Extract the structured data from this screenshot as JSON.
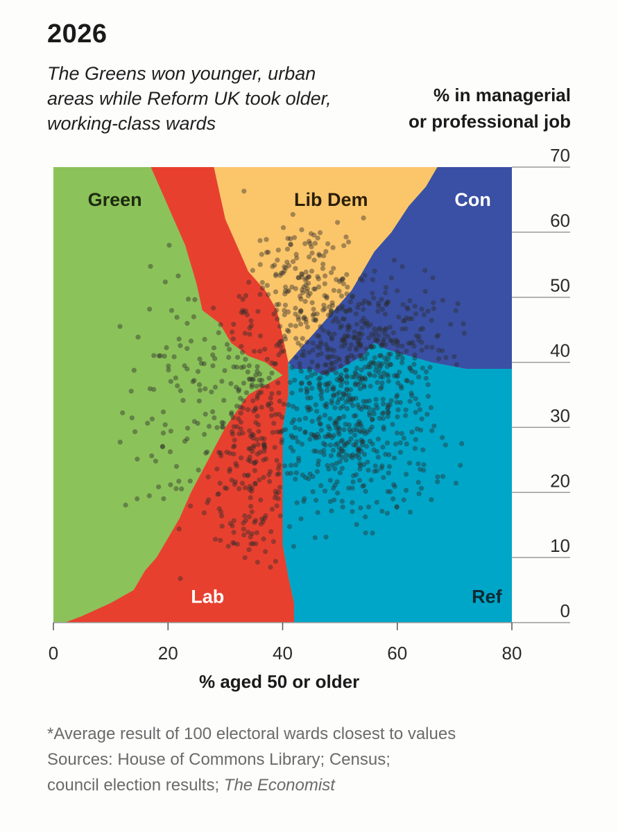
{
  "title": "2026",
  "subtitle": "The Greens won younger, urban areas while Reform UK took older, working-class wards",
  "ylabel_line1": "% in managerial",
  "ylabel_line2": "or professional job",
  "xlabel": "% aged 50 or older",
  "footnote": "*Average result of 100 electoral wards closest to values",
  "sources_line1": "Sources: House of Commons Library; Census;",
  "sources_line2_prefix": "council election results; ",
  "sources_line2_italic": "The Economist",
  "colors": {
    "Green": "#8cc25a",
    "Lab": "#e8402f",
    "LibDem": "#fbc56a",
    "Con": "#3a50a4",
    "Ref": "#00a6c8",
    "dot": "#2a2a2a"
  },
  "chart_data": {
    "type": "scatter",
    "xlim": [
      0,
      80
    ],
    "ylim": [
      0,
      70
    ],
    "x_ticks": [
      0,
      20,
      40,
      60,
      80
    ],
    "y_ticks": [
      0,
      10,
      20,
      30,
      40,
      50,
      60,
      70
    ],
    "grid": "horizontal",
    "regions": [
      {
        "name": "Green",
        "label": "Green",
        "label_pos": [
          6,
          65
        ],
        "label_color": "#1e2a10",
        "polygon": [
          [
            0,
            70
          ],
          [
            17,
            70
          ],
          [
            19,
            66
          ],
          [
            21,
            62
          ],
          [
            23,
            58
          ],
          [
            25,
            52
          ],
          [
            26,
            48
          ],
          [
            29,
            46
          ],
          [
            31,
            43
          ],
          [
            34,
            41
          ],
          [
            37,
            40
          ],
          [
            40,
            38
          ],
          [
            38,
            37
          ],
          [
            34,
            35
          ],
          [
            30,
            30
          ],
          [
            27,
            25
          ],
          [
            24,
            20
          ],
          [
            22,
            16
          ],
          [
            20,
            13
          ],
          [
            18,
            10
          ],
          [
            16,
            8
          ],
          [
            14,
            5
          ],
          [
            10,
            3
          ],
          [
            5,
            1
          ],
          [
            2,
            0
          ],
          [
            0,
            0
          ]
        ]
      },
      {
        "name": "Lab",
        "label": "Lab",
        "label_pos": [
          24,
          4
        ],
        "label_color": "#ffffff",
        "polygon": [
          [
            17,
            70
          ],
          [
            28,
            70
          ],
          [
            29,
            66
          ],
          [
            30,
            62
          ],
          [
            32,
            58
          ],
          [
            34,
            54
          ],
          [
            37,
            51
          ],
          [
            39,
            48
          ],
          [
            40,
            44
          ],
          [
            41,
            40
          ],
          [
            41,
            35
          ],
          [
            40,
            30
          ],
          [
            40,
            25
          ],
          [
            40,
            18
          ],
          [
            40,
            12
          ],
          [
            41,
            7
          ],
          [
            42,
            3
          ],
          [
            42,
            0
          ],
          [
            2,
            0
          ],
          [
            5,
            1
          ],
          [
            10,
            3
          ],
          [
            14,
            5
          ],
          [
            16,
            8
          ],
          [
            18,
            10
          ],
          [
            20,
            13
          ],
          [
            22,
            16
          ],
          [
            24,
            20
          ],
          [
            27,
            25
          ],
          [
            30,
            30
          ],
          [
            34,
            35
          ],
          [
            38,
            37
          ],
          [
            40,
            38
          ],
          [
            37,
            40
          ],
          [
            34,
            41
          ],
          [
            31,
            43
          ],
          [
            29,
            46
          ],
          [
            26,
            48
          ],
          [
            25,
            52
          ],
          [
            23,
            58
          ],
          [
            21,
            62
          ],
          [
            19,
            66
          ]
        ]
      },
      {
        "name": "LibDem",
        "label": "Lib Dem",
        "label_pos": [
          42,
          65
        ],
        "label_color": "#2a1f08",
        "polygon": [
          [
            28,
            70
          ],
          [
            67,
            70
          ],
          [
            65,
            67
          ],
          [
            62,
            64
          ],
          [
            59,
            60
          ],
          [
            56,
            57
          ],
          [
            54,
            54
          ],
          [
            52,
            51
          ],
          [
            50,
            49
          ],
          [
            48,
            47
          ],
          [
            46,
            45
          ],
          [
            44,
            43
          ],
          [
            42,
            41
          ],
          [
            41,
            40
          ],
          [
            40,
            44
          ],
          [
            39,
            48
          ],
          [
            37,
            51
          ],
          [
            34,
            54
          ],
          [
            32,
            58
          ],
          [
            30,
            62
          ],
          [
            29,
            66
          ]
        ]
      },
      {
        "name": "Con",
        "label": "Con",
        "label_pos": [
          70,
          65
        ],
        "label_color": "#ffffff",
        "polygon": [
          [
            67,
            70
          ],
          [
            80,
            70
          ],
          [
            80,
            39
          ],
          [
            72,
            39
          ],
          [
            66,
            40
          ],
          [
            62,
            41
          ],
          [
            58,
            42
          ],
          [
            56,
            43
          ],
          [
            54,
            41
          ],
          [
            52,
            40
          ],
          [
            50,
            39
          ],
          [
            47,
            38
          ],
          [
            45,
            39
          ],
          [
            42,
            39
          ],
          [
            41,
            40
          ],
          [
            42,
            41
          ],
          [
            44,
            43
          ],
          [
            46,
            45
          ],
          [
            48,
            47
          ],
          [
            50,
            49
          ],
          [
            52,
            51
          ],
          [
            54,
            54
          ],
          [
            56,
            57
          ],
          [
            59,
            60
          ],
          [
            62,
            64
          ],
          [
            65,
            67
          ]
        ]
      },
      {
        "name": "Ref",
        "label": "Ref",
        "label_pos": [
          73,
          4
        ],
        "label_color": "#0d2a33",
        "polygon": [
          [
            41,
            40
          ],
          [
            42,
            39
          ],
          [
            45,
            39
          ],
          [
            47,
            38
          ],
          [
            50,
            39
          ],
          [
            52,
            40
          ],
          [
            54,
            41
          ],
          [
            56,
            43
          ],
          [
            58,
            42
          ],
          [
            62,
            41
          ],
          [
            66,
            40
          ],
          [
            72,
            39
          ],
          [
            80,
            39
          ],
          [
            80,
            0
          ],
          [
            42,
            0
          ],
          [
            42,
            3
          ],
          [
            41,
            7
          ],
          [
            40,
            12
          ],
          [
            40,
            18
          ],
          [
            40,
            25
          ],
          [
            40,
            30
          ],
          [
            41,
            35
          ]
        ]
      }
    ],
    "clusters": [
      {
        "name": "young-green",
        "n": 120,
        "cx": 24,
        "cy": 33,
        "sx": 6,
        "sy": 10,
        "xr": [
          3,
          38
        ],
        "yr": [
          4,
          60
        ]
      },
      {
        "name": "urban-lab",
        "n": 280,
        "cx": 35,
        "cy": 27,
        "sx": 4,
        "sy": 12,
        "xr": [
          20,
          45
        ],
        "yr": [
          8,
          68
        ]
      },
      {
        "name": "libdem",
        "n": 200,
        "cx": 44,
        "cy": 50,
        "sx": 5,
        "sy": 6,
        "xr": [
          33,
          58
        ],
        "yr": [
          38,
          63
        ]
      },
      {
        "name": "con",
        "n": 260,
        "cx": 55,
        "cy": 44,
        "sx": 7,
        "sy": 5,
        "xr": [
          42,
          72
        ],
        "yr": [
          33,
          57
        ]
      },
      {
        "name": "ref",
        "n": 520,
        "cx": 52,
        "cy": 30,
        "sx": 7,
        "sy": 8,
        "xr": [
          40,
          72
        ],
        "yr": [
          13,
          44
        ]
      }
    ]
  }
}
